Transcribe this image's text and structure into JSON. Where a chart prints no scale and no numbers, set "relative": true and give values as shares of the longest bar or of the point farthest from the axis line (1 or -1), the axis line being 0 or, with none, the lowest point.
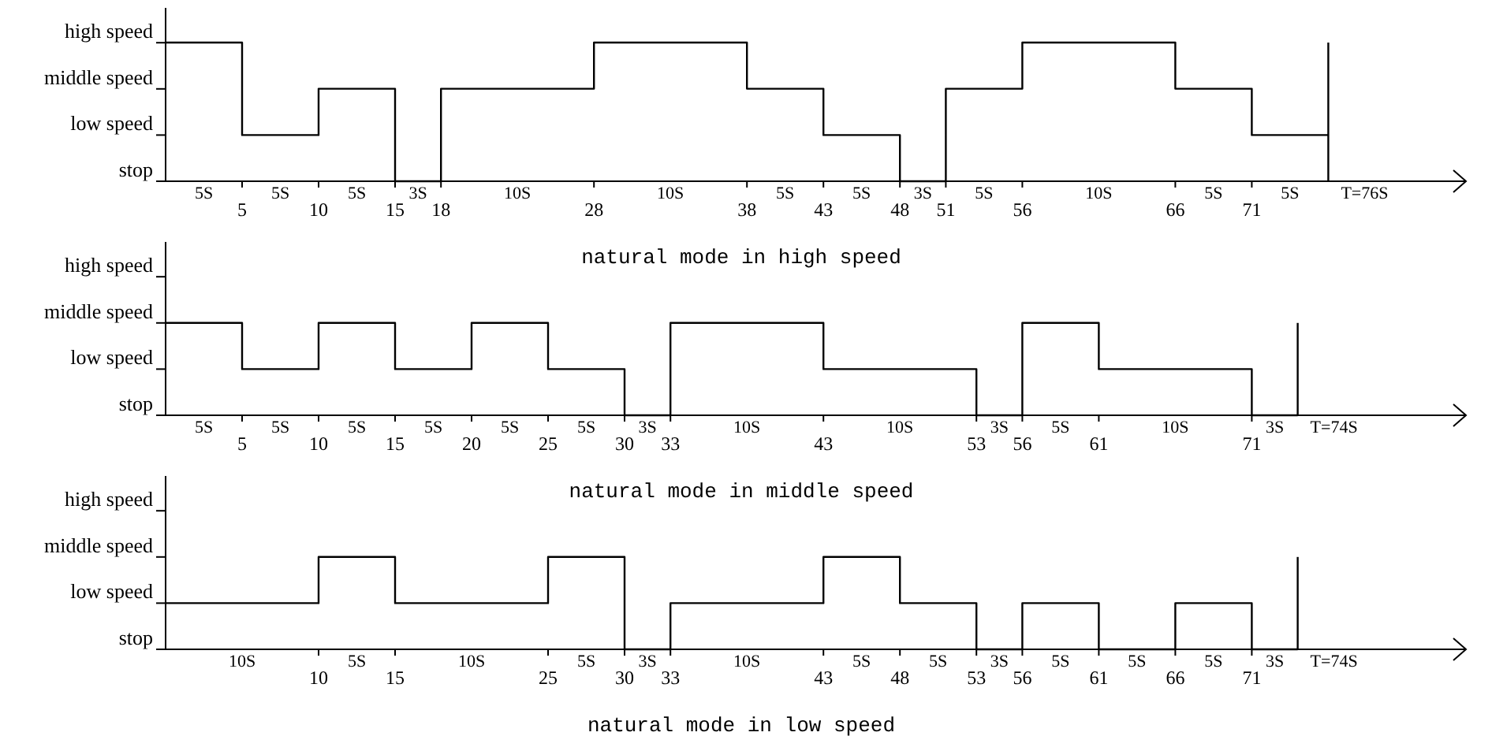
{
  "chart_data": [
    {
      "type": "step",
      "title": "natural mode in high speed",
      "relative": true,
      "x": [
        0,
        5,
        10,
        15,
        18,
        28,
        38,
        43,
        48,
        51,
        56,
        66,
        71,
        76
      ],
      "series": [
        {
          "color": "#000000",
          "values": [
            1,
            0.333,
            0.667,
            0,
            0.667,
            1,
            0.667,
            0.333,
            0,
            0.667,
            1,
            0.667,
            0.333,
            0.333
          ]
        }
      ],
      "xlim": [
        0,
        85
      ],
      "xticks": [
        5,
        10,
        15,
        18,
        28,
        38,
        43,
        48,
        51,
        56,
        66,
        71
      ],
      "ref_lines": [
        {
          "axis": "x",
          "value": 76,
          "label": "T=76S",
          "color": "#000000"
        }
      ],
      "annotations": [
        "5S",
        "5S",
        "5S",
        "3S",
        "10S",
        "10S",
        "5S",
        "5S",
        "3S",
        "5S",
        "10S",
        "5S",
        "5S",
        "high speed",
        "middle speed",
        "low speed",
        "stop"
      ]
    },
    {
      "type": "step",
      "title": "natural mode in middle speed",
      "relative": true,
      "x": [
        0,
        5,
        10,
        15,
        20,
        25,
        30,
        33,
        43,
        53,
        56,
        61,
        71,
        74
      ],
      "series": [
        {
          "color": "#000000",
          "values": [
            1,
            0.5,
            1,
            0.5,
            1,
            0.5,
            0,
            1,
            0.5,
            0,
            1,
            0.5,
            0,
            0
          ]
        }
      ],
      "xlim": [
        0,
        85
      ],
      "xticks": [
        5,
        10,
        15,
        20,
        25,
        30,
        33,
        43,
        53,
        56,
        61,
        71
      ],
      "ref_lines": [
        {
          "axis": "x",
          "value": 74,
          "label": "T=74S",
          "color": "#000000"
        }
      ],
      "annotations": [
        "5S",
        "5S",
        "5S",
        "5S",
        "5S",
        "5S",
        "3S",
        "10S",
        "10S",
        "3S",
        "5S",
        "10S",
        "3S",
        "high speed",
        "middle speed",
        "low speed",
        "stop"
      ]
    },
    {
      "type": "step",
      "title": "natural mode in low speed",
      "relative": true,
      "x": [
        0,
        10,
        15,
        25,
        30,
        33,
        43,
        48,
        53,
        56,
        61,
        66,
        71,
        74
      ],
      "series": [
        {
          "color": "#000000",
          "values": [
            0.5,
            1,
            0.5,
            1,
            0,
            0.5,
            1,
            0.5,
            0,
            0.5,
            0,
            0.5,
            0,
            0
          ]
        }
      ],
      "xlim": [
        0,
        85
      ],
      "xticks": [
        10,
        15,
        25,
        30,
        33,
        43,
        48,
        53,
        56,
        61,
        66,
        71
      ],
      "ref_lines": [
        {
          "axis": "x",
          "value": 74,
          "label": "T=74S",
          "color": "#000000"
        }
      ],
      "annotations": [
        "10S",
        "5S",
        "10S",
        "5S",
        "3S",
        "10S",
        "5S",
        "5S",
        "3S",
        "5S",
        "5S",
        "5S",
        "3S",
        "high speed",
        "middle speed",
        "low speed",
        "stop"
      ]
    }
  ]
}
